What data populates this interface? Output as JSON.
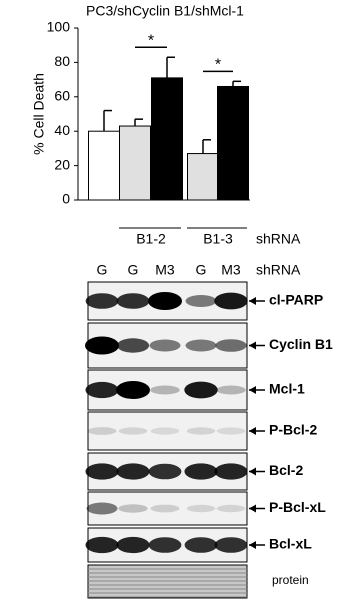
{
  "chart_data": {
    "type": "bar",
    "title": "PC3/shCyclin B1/shMcl-1",
    "ylabel": "% Cell Death",
    "categories": [
      "G",
      "G",
      "M3",
      "G",
      "M3"
    ],
    "values": [
      40,
      43,
      71,
      27,
      66
    ],
    "errors": [
      12,
      4,
      12,
      8,
      3
    ],
    "colors": [
      "#ffffff",
      "#e0e0e0",
      "#000000",
      "#e0e0e0",
      "#000000"
    ],
    "ylim": [
      0,
      100
    ],
    "yticks": [
      0,
      20,
      40,
      60,
      80,
      100
    ],
    "significance": [
      {
        "from": 1,
        "to": 2,
        "label": "*"
      },
      {
        "from": 3,
        "to": 4,
        "label": "*"
      }
    ],
    "groups": [
      {
        "label": "B1-2",
        "from": 1,
        "to": 2
      },
      {
        "label": "B1-3",
        "from": 3,
        "to": 4
      }
    ],
    "row_label": "shRNA"
  },
  "blots": {
    "proteins": [
      "cl-PARP",
      "Cyclin B1",
      "Mcl-1",
      "P-Bcl-2",
      "Bcl-2",
      "P-Bcl-xL",
      "Bcl-xL"
    ],
    "loading_label": "protein"
  }
}
